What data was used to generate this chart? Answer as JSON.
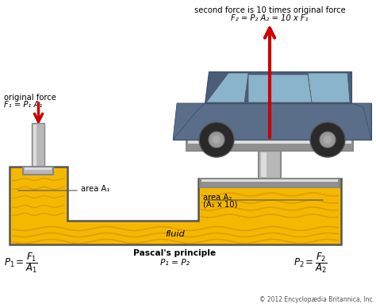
{
  "bg_color": "#ffffff",
  "fluid_color": "#f5b800",
  "fluid_wave_color": "#e8a000",
  "fluid_dark": "#cc9000",
  "tank_edge_color": "#555555",
  "piston_color": "#b8b8b8",
  "piston_light": "#dddddd",
  "piston_dark": "#888888",
  "platform_color": "#b0b0b0",
  "arrow_color": "#cc0000",
  "text_color": "#000000",
  "title_top_line1": "second force is 10 times original force",
  "title_top_line2": "F₂ = P₂ A₂ = 10 x F₁",
  "label_orig_force_line1": "original force",
  "label_orig_force_line2": "F₁ = P₁ A₁",
  "label_area_a1": "area A₁",
  "label_area_a2": "area A₂",
  "label_area_a2_sub": "(A₁ x 10)",
  "label_fluid": "fluid",
  "label_center_title": "Pascal's principle",
  "label_center_sub": "P₁ = P₂",
  "label_copyright": "© 2012 Encyclopædia Britannica, Inc.",
  "figsize": [
    4.74,
    3.83
  ],
  "dpi": 100
}
